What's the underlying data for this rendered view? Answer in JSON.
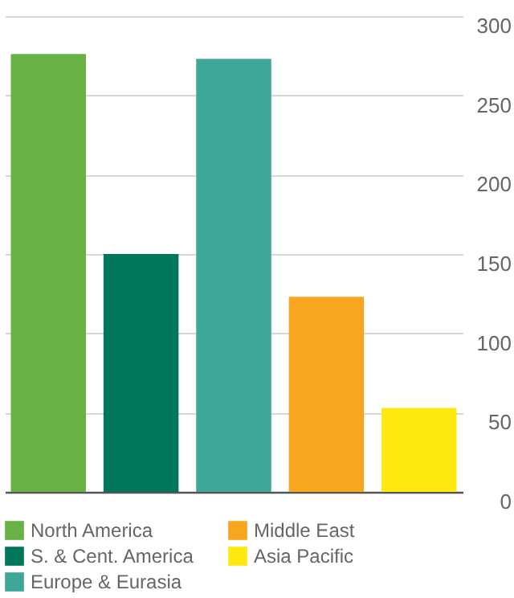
{
  "chart_data": {
    "type": "bar",
    "categories": [
      null,
      null,
      null,
      null,
      null
    ],
    "series": [
      {
        "name": "North America",
        "color": "#67b145",
        "values": [
          276,
          null,
          null,
          null,
          null
        ]
      },
      {
        "name": "S. & Cent. America",
        "color": "#00775a",
        "values": [
          null,
          150,
          null,
          null,
          null
        ]
      },
      {
        "name": "Europe & Eurasia",
        "color": "#3fa797",
        "values": [
          null,
          null,
          273,
          null,
          null
        ]
      },
      {
        "name": "Middle East",
        "color": "#f8a51f",
        "values": [
          null,
          null,
          null,
          123,
          null
        ]
      },
      {
        "name": "Asia Pacific",
        "color": "#fde910",
        "values": [
          null,
          null,
          null,
          null,
          53
        ]
      }
    ],
    "ylim": [
      0,
      300
    ],
    "yticks": [
      0,
      50,
      100,
      150,
      200,
      250,
      300
    ],
    "grid": "y",
    "legend": "bottom"
  }
}
